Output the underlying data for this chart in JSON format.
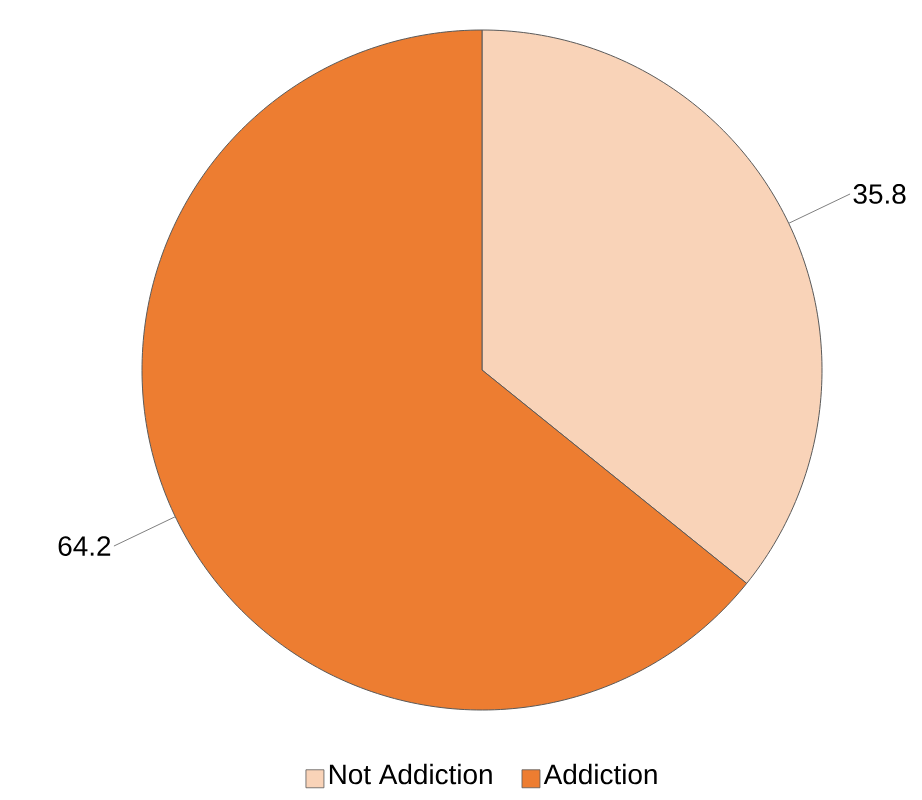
{
  "chart_data": {
    "type": "pie",
    "categories": [
      "Not Addiction",
      "Addiction"
    ],
    "values": [
      35.8,
      64.2
    ],
    "colors": [
      "#f9d3b8",
      "#ed7d31"
    ],
    "data_labels": true,
    "legend": "bottom"
  }
}
